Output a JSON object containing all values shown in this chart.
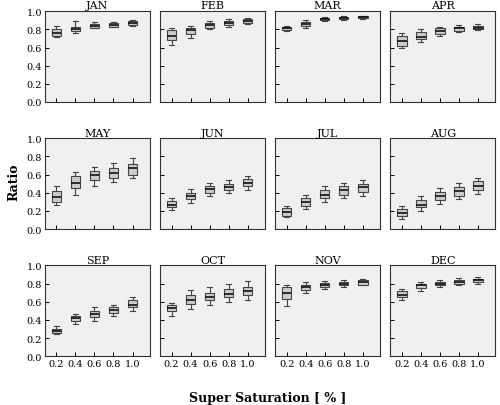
{
  "months": [
    "JAN",
    "FEB",
    "MAR",
    "APR",
    "MAY",
    "JUN",
    "JUL",
    "AUG",
    "SEP",
    "OCT",
    "NOV",
    "DEC"
  ],
  "ss_levels": [
    0.2,
    0.4,
    0.6,
    0.8,
    1.0
  ],
  "box_data": {
    "JAN": [
      {
        "q1": 0.73,
        "median": 0.76,
        "q3": 0.8,
        "whislo": 0.72,
        "whishi": 0.84
      },
      {
        "q1": 0.78,
        "median": 0.8,
        "q3": 0.83,
        "whislo": 0.76,
        "whishi": 0.89
      },
      {
        "q1": 0.82,
        "median": 0.84,
        "q3": 0.86,
        "whislo": 0.81,
        "whishi": 0.88
      },
      {
        "q1": 0.83,
        "median": 0.85,
        "q3": 0.87,
        "whislo": 0.83,
        "whishi": 0.88
      },
      {
        "q1": 0.85,
        "median": 0.87,
        "q3": 0.89,
        "whislo": 0.84,
        "whishi": 0.9
      }
    ],
    "FEB": [
      {
        "q1": 0.68,
        "median": 0.73,
        "q3": 0.79,
        "whislo": 0.63,
        "whishi": 0.82
      },
      {
        "q1": 0.75,
        "median": 0.79,
        "q3": 0.82,
        "whislo": 0.71,
        "whishi": 0.84
      },
      {
        "q1": 0.82,
        "median": 0.85,
        "q3": 0.87,
        "whislo": 0.8,
        "whishi": 0.89
      },
      {
        "q1": 0.85,
        "median": 0.87,
        "q3": 0.89,
        "whislo": 0.83,
        "whishi": 0.91
      },
      {
        "q1": 0.87,
        "median": 0.89,
        "q3": 0.91,
        "whislo": 0.86,
        "whishi": 0.92
      }
    ],
    "MAR": [
      {
        "q1": 0.79,
        "median": 0.81,
        "q3": 0.83,
        "whislo": 0.78,
        "whishi": 0.84
      },
      {
        "q1": 0.84,
        "median": 0.86,
        "q3": 0.88,
        "whislo": 0.82,
        "whishi": 0.9
      },
      {
        "q1": 0.9,
        "median": 0.91,
        "q3": 0.93,
        "whislo": 0.89,
        "whishi": 0.94
      },
      {
        "q1": 0.91,
        "median": 0.93,
        "q3": 0.94,
        "whislo": 0.9,
        "whishi": 0.95
      },
      {
        "q1": 0.92,
        "median": 0.94,
        "q3": 0.95,
        "whislo": 0.91,
        "whishi": 0.95
      }
    ],
    "APR": [
      {
        "q1": 0.62,
        "median": 0.67,
        "q3": 0.73,
        "whislo": 0.6,
        "whishi": 0.76
      },
      {
        "q1": 0.69,
        "median": 0.72,
        "q3": 0.77,
        "whislo": 0.66,
        "whishi": 0.8
      },
      {
        "q1": 0.75,
        "median": 0.78,
        "q3": 0.81,
        "whislo": 0.73,
        "whishi": 0.83
      },
      {
        "q1": 0.78,
        "median": 0.81,
        "q3": 0.83,
        "whislo": 0.77,
        "whishi": 0.85
      },
      {
        "q1": 0.8,
        "median": 0.82,
        "q3": 0.84,
        "whislo": 0.79,
        "whishi": 0.86
      }
    ],
    "MAY": [
      {
        "q1": 0.3,
        "median": 0.35,
        "q3": 0.42,
        "whislo": 0.27,
        "whishi": 0.47
      },
      {
        "q1": 0.45,
        "median": 0.51,
        "q3": 0.58,
        "whislo": 0.38,
        "whishi": 0.63
      },
      {
        "q1": 0.54,
        "median": 0.6,
        "q3": 0.64,
        "whislo": 0.48,
        "whishi": 0.68
      },
      {
        "q1": 0.56,
        "median": 0.62,
        "q3": 0.67,
        "whislo": 0.52,
        "whishi": 0.73
      },
      {
        "q1": 0.6,
        "median": 0.67,
        "q3": 0.72,
        "whislo": 0.56,
        "whishi": 0.78
      }
    ],
    "JUN": [
      {
        "q1": 0.24,
        "median": 0.27,
        "q3": 0.31,
        "whislo": 0.21,
        "whishi": 0.34
      },
      {
        "q1": 0.33,
        "median": 0.36,
        "q3": 0.4,
        "whislo": 0.29,
        "whishi": 0.44
      },
      {
        "q1": 0.4,
        "median": 0.44,
        "q3": 0.47,
        "whislo": 0.37,
        "whishi": 0.51
      },
      {
        "q1": 0.43,
        "median": 0.46,
        "q3": 0.5,
        "whislo": 0.4,
        "whishi": 0.54
      },
      {
        "q1": 0.47,
        "median": 0.51,
        "q3": 0.55,
        "whislo": 0.43,
        "whishi": 0.59
      }
    ],
    "JUL": [
      {
        "q1": 0.15,
        "median": 0.19,
        "q3": 0.23,
        "whislo": 0.13,
        "whishi": 0.26
      },
      {
        "q1": 0.26,
        "median": 0.3,
        "q3": 0.34,
        "whislo": 0.22,
        "whishi": 0.38
      },
      {
        "q1": 0.34,
        "median": 0.38,
        "q3": 0.43,
        "whislo": 0.3,
        "whishi": 0.47
      },
      {
        "q1": 0.38,
        "median": 0.43,
        "q3": 0.47,
        "whislo": 0.34,
        "whishi": 0.51
      },
      {
        "q1": 0.41,
        "median": 0.46,
        "q3": 0.5,
        "whislo": 0.37,
        "whishi": 0.54
      }
    ],
    "AUG": [
      {
        "q1": 0.14,
        "median": 0.18,
        "q3": 0.22,
        "whislo": 0.11,
        "whishi": 0.26
      },
      {
        "q1": 0.24,
        "median": 0.27,
        "q3": 0.32,
        "whislo": 0.2,
        "whishi": 0.36
      },
      {
        "q1": 0.32,
        "median": 0.36,
        "q3": 0.41,
        "whislo": 0.28,
        "whishi": 0.45
      },
      {
        "q1": 0.37,
        "median": 0.42,
        "q3": 0.46,
        "whislo": 0.33,
        "whishi": 0.51
      },
      {
        "q1": 0.43,
        "median": 0.48,
        "q3": 0.53,
        "whislo": 0.39,
        "whishi": 0.56
      }
    ],
    "SEP": [
      {
        "q1": 0.26,
        "median": 0.28,
        "q3": 0.3,
        "whislo": 0.24,
        "whishi": 0.33
      },
      {
        "q1": 0.39,
        "median": 0.42,
        "q3": 0.44,
        "whislo": 0.36,
        "whishi": 0.47
      },
      {
        "q1": 0.43,
        "median": 0.47,
        "q3": 0.5,
        "whislo": 0.39,
        "whishi": 0.54
      },
      {
        "q1": 0.48,
        "median": 0.51,
        "q3": 0.54,
        "whislo": 0.44,
        "whishi": 0.57
      },
      {
        "q1": 0.54,
        "median": 0.57,
        "q3": 0.62,
        "whislo": 0.5,
        "whishi": 0.65
      }
    ],
    "OCT": [
      {
        "q1": 0.5,
        "median": 0.53,
        "q3": 0.56,
        "whislo": 0.44,
        "whishi": 0.59
      },
      {
        "q1": 0.58,
        "median": 0.62,
        "q3": 0.67,
        "whislo": 0.52,
        "whishi": 0.73
      },
      {
        "q1": 0.62,
        "median": 0.65,
        "q3": 0.7,
        "whislo": 0.57,
        "whishi": 0.76
      },
      {
        "q1": 0.65,
        "median": 0.69,
        "q3": 0.74,
        "whislo": 0.6,
        "whishi": 0.8
      },
      {
        "q1": 0.67,
        "median": 0.72,
        "q3": 0.76,
        "whislo": 0.62,
        "whishi": 0.83
      }
    ],
    "NOV": [
      {
        "q1": 0.63,
        "median": 0.7,
        "q3": 0.76,
        "whislo": 0.55,
        "whishi": 0.79
      },
      {
        "q1": 0.73,
        "median": 0.76,
        "q3": 0.79,
        "whislo": 0.7,
        "whishi": 0.82
      },
      {
        "q1": 0.76,
        "median": 0.79,
        "q3": 0.81,
        "whislo": 0.74,
        "whishi": 0.83
      },
      {
        "q1": 0.78,
        "median": 0.8,
        "q3": 0.82,
        "whislo": 0.76,
        "whishi": 0.84
      },
      {
        "q1": 0.79,
        "median": 0.82,
        "q3": 0.84,
        "whislo": 0.78,
        "whishi": 0.85
      }
    ],
    "DEC": [
      {
        "q1": 0.65,
        "median": 0.68,
        "q3": 0.72,
        "whislo": 0.62,
        "whishi": 0.74
      },
      {
        "q1": 0.75,
        "median": 0.78,
        "q3": 0.8,
        "whislo": 0.72,
        "whishi": 0.82
      },
      {
        "q1": 0.78,
        "median": 0.8,
        "q3": 0.82,
        "whislo": 0.76,
        "whishi": 0.84
      },
      {
        "q1": 0.8,
        "median": 0.82,
        "q3": 0.84,
        "whislo": 0.78,
        "whishi": 0.86
      },
      {
        "q1": 0.82,
        "median": 0.84,
        "q3": 0.85,
        "whislo": 0.8,
        "whishi": 0.87
      }
    ]
  },
  "xlabel": "Super Saturation [ % ]",
  "ylabel": "Ratio",
  "ylim": [
    0.0,
    1.0
  ],
  "yticks": [
    0.0,
    0.2,
    0.4,
    0.6,
    0.8,
    1.0
  ],
  "xticks": [
    0.2,
    0.4,
    0.6,
    0.8,
    1.0
  ],
  "box_facecolor": "#cccccc",
  "box_edgecolor": "#444444",
  "median_color": "#111111",
  "whisker_color": "#444444",
  "cap_color": "#444444",
  "box_width": 0.1,
  "title_fontsize": 8,
  "label_fontsize": 9,
  "tick_fontsize": 7,
  "ax_facecolor": "#f0f0f0"
}
